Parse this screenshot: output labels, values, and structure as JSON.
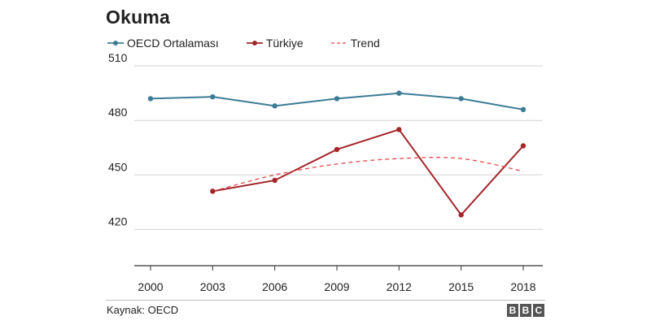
{
  "chart_data": {
    "type": "line",
    "title": "Okuma",
    "categories": [
      "2000",
      "2003",
      "2006",
      "2009",
      "2012",
      "2015",
      "2018"
    ],
    "series": [
      {
        "name": "OECD Ortalaması",
        "color": "#3c7d96",
        "style": "solid-markers",
        "values": [
          492,
          493,
          488,
          492,
          495,
          492,
          486
        ]
      },
      {
        "name": "Türkiye",
        "color": "#a3262a",
        "style": "solid-markers",
        "values": [
          null,
          441,
          447,
          464,
          475,
          428,
          466
        ]
      },
      {
        "name": "Trend",
        "color": "#e0474c",
        "style": "dashed",
        "values": [
          null,
          441,
          450,
          456,
          459,
          459,
          452
        ]
      }
    ],
    "yticks": [
      420,
      450,
      480,
      510
    ],
    "ylim": [
      400,
      515
    ],
    "grid": true,
    "legend": "top-left"
  },
  "footer": {
    "source": "Kaynak: OECD",
    "logo": [
      "B",
      "B",
      "C"
    ]
  }
}
